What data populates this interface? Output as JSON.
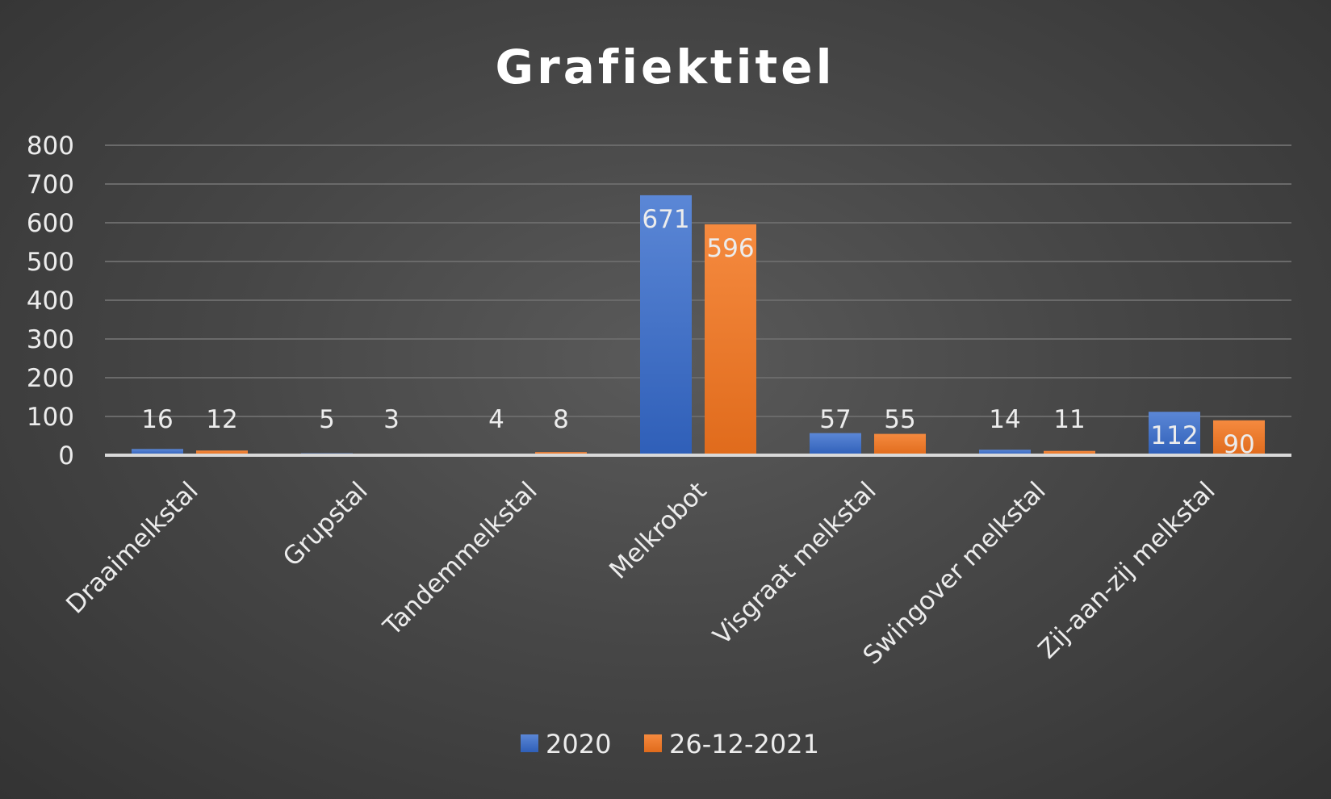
{
  "chart_data": {
    "type": "bar",
    "title": "Grafiektitel",
    "categories": [
      "Draaimelkstal",
      "Grupstal",
      "Tandemmelkstal",
      "Melkrobot",
      "Visgraat melkstal",
      "Swingover melkstal",
      "Zij-aan-zij melkstal"
    ],
    "series": [
      {
        "name": "2020",
        "values": [
          16,
          5,
          4,
          671,
          57,
          14,
          112
        ],
        "color": "#4472C4"
      },
      {
        "name": "26-12-2021",
        "values": [
          12,
          3,
          8,
          596,
          55,
          11,
          90
        ],
        "color": "#ED7D31"
      }
    ],
    "yticks": [
      "0",
      "100",
      "200",
      "300",
      "400",
      "500",
      "600",
      "700",
      "800"
    ],
    "ylim": [
      0,
      800
    ],
    "grid": true,
    "legend_position": "bottom",
    "data_labels": true
  }
}
